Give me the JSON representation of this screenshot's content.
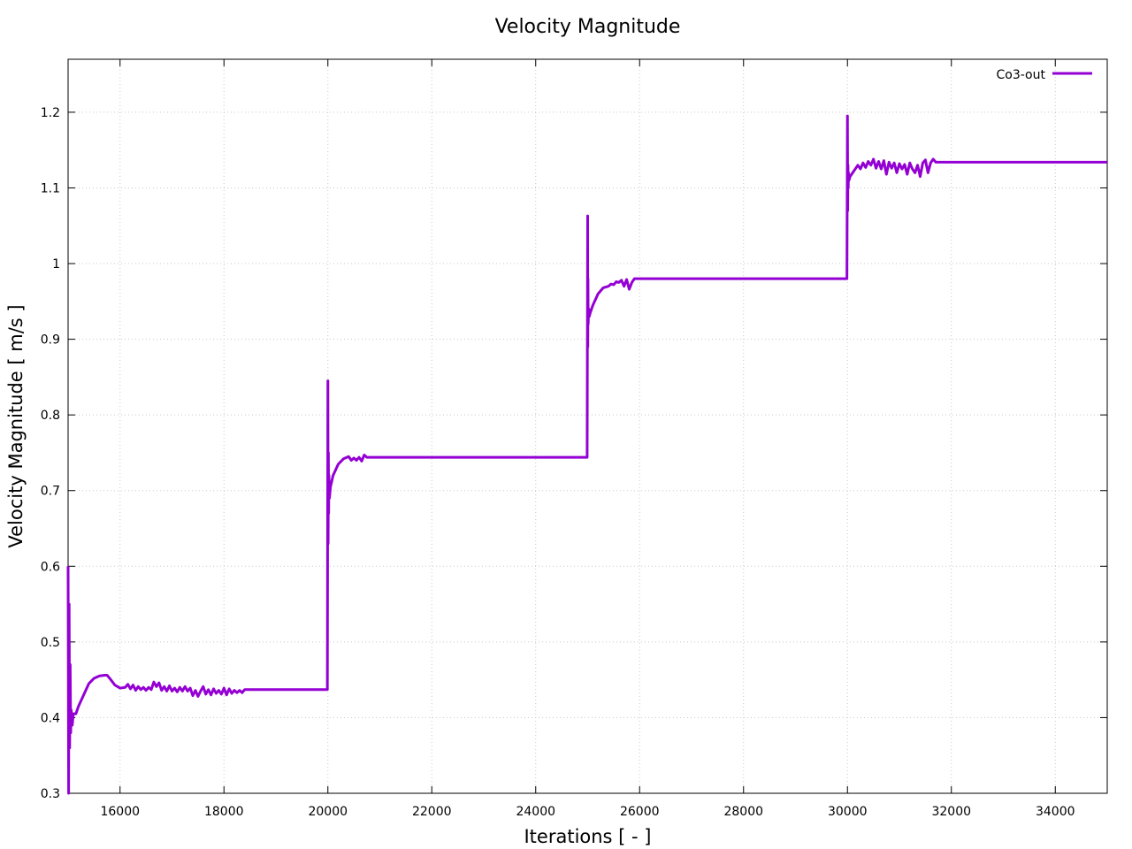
{
  "chart_data": {
    "type": "line",
    "title": "Velocity Magnitude",
    "xlabel": "Iterations [ - ]",
    "ylabel": "Velocity Magnitude [ m/s ]",
    "xlim": [
      15000,
      35000
    ],
    "ylim": [
      0.3,
      1.27
    ],
    "xticks": [
      16000,
      18000,
      20000,
      22000,
      24000,
      26000,
      28000,
      30000,
      32000,
      34000
    ],
    "yticks": [
      0.3,
      0.4,
      0.5,
      0.6,
      0.7,
      0.8,
      0.9,
      1,
      1.1,
      1.2
    ],
    "grid": true,
    "legend_position": "top-right",
    "series": [
      {
        "name": "Co3-out",
        "color": "#9400d3",
        "x": [
          15000,
          15010,
          15020,
          15030,
          15040,
          15050,
          15060,
          15080,
          15100,
          15150,
          15200,
          15300,
          15400,
          15500,
          15600,
          15700,
          15750,
          15800,
          15900,
          16000,
          16100,
          16150,
          16200,
          16250,
          16300,
          16350,
          16400,
          16450,
          16500,
          16550,
          16600,
          16650,
          16700,
          16750,
          16800,
          16850,
          16900,
          16950,
          17000,
          17050,
          17100,
          17150,
          17200,
          17250,
          17300,
          17350,
          17400,
          17450,
          17500,
          17550,
          17600,
          17650,
          17700,
          17750,
          17800,
          17850,
          17900,
          17950,
          18000,
          18050,
          18100,
          18150,
          18200,
          18250,
          18300,
          18350,
          18400,
          18450,
          18500,
          19000,
          19990,
          20000,
          20005,
          20010,
          20015,
          20020,
          20030,
          20050,
          20100,
          20200,
          20300,
          20400,
          20450,
          20500,
          20550,
          20600,
          20650,
          20700,
          20750,
          20800,
          21000,
          23000,
          24990,
          25000,
          25003,
          25006,
          25010,
          25020,
          25030,
          25050,
          25100,
          25200,
          25300,
          25400,
          25450,
          25500,
          25550,
          25600,
          25650,
          25700,
          25750,
          25800,
          25850,
          25900,
          25950,
          26000,
          27000,
          28000,
          29990,
          30000,
          30005,
          30010,
          30015,
          30020,
          30030,
          30050,
          30100,
          30150,
          30200,
          30250,
          30300,
          30350,
          30400,
          30450,
          30500,
          30550,
          30600,
          30650,
          30700,
          30750,
          30800,
          30850,
          30900,
          30950,
          31000,
          31050,
          31100,
          31150,
          31200,
          31250,
          31300,
          31350,
          31400,
          31450,
          31500,
          31550,
          31600,
          31650,
          31700,
          32000,
          33000,
          34000,
          35000
        ],
        "y": [
          0.6,
          0.3,
          0.55,
          0.36,
          0.47,
          0.38,
          0.41,
          0.39,
          0.405,
          0.405,
          0.415,
          0.43,
          0.445,
          0.452,
          0.455,
          0.456,
          0.456,
          0.452,
          0.443,
          0.439,
          0.44,
          0.444,
          0.438,
          0.443,
          0.436,
          0.441,
          0.437,
          0.44,
          0.436,
          0.44,
          0.437,
          0.447,
          0.441,
          0.446,
          0.436,
          0.441,
          0.435,
          0.442,
          0.435,
          0.439,
          0.434,
          0.44,
          0.435,
          0.441,
          0.435,
          0.439,
          0.429,
          0.436,
          0.428,
          0.435,
          0.441,
          0.431,
          0.437,
          0.43,
          0.438,
          0.432,
          0.436,
          0.431,
          0.439,
          0.43,
          0.438,
          0.432,
          0.436,
          0.433,
          0.436,
          0.433,
          0.437,
          0.437,
          0.437,
          0.437,
          0.437,
          0.845,
          0.63,
          0.75,
          0.67,
          0.72,
          0.69,
          0.705,
          0.72,
          0.735,
          0.742,
          0.745,
          0.74,
          0.743,
          0.74,
          0.744,
          0.739,
          0.747,
          0.744,
          0.744,
          0.744,
          0.744,
          0.744,
          1.063,
          0.89,
          0.98,
          0.92,
          0.94,
          0.93,
          0.935,
          0.945,
          0.96,
          0.968,
          0.97,
          0.973,
          0.972,
          0.976,
          0.975,
          0.978,
          0.97,
          0.979,
          0.966,
          0.975,
          0.98,
          0.98,
          0.98,
          0.98,
          0.98,
          0.98,
          1.195,
          1.07,
          1.13,
          1.1,
          1.12,
          1.11,
          1.115,
          1.12,
          1.125,
          1.13,
          1.125,
          1.133,
          1.127,
          1.135,
          1.13,
          1.138,
          1.126,
          1.135,
          1.125,
          1.136,
          1.118,
          1.134,
          1.126,
          1.133,
          1.12,
          1.132,
          1.125,
          1.131,
          1.118,
          1.133,
          1.125,
          1.12,
          1.13,
          1.115,
          1.133,
          1.137,
          1.12,
          1.133,
          1.138,
          1.134,
          1.134,
          1.134,
          1.134,
          1.134
        ]
      }
    ]
  }
}
